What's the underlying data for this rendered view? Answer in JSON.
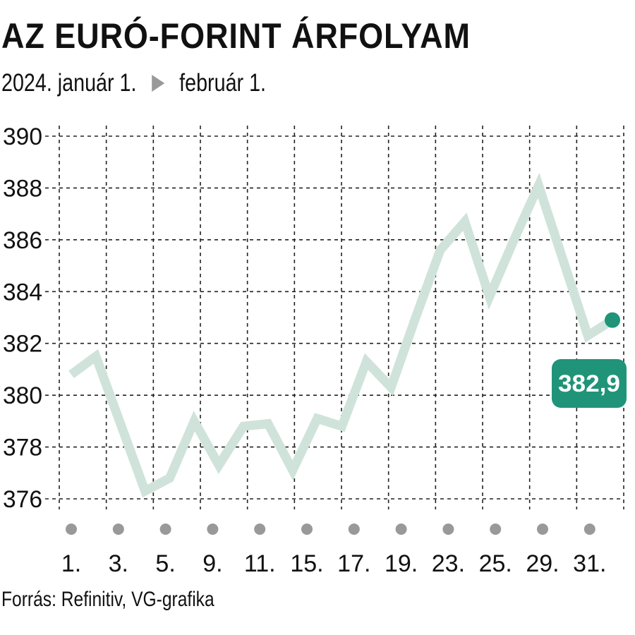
{
  "header": {
    "title": "AZ EURÓ-FORINT ÁRFOLYAM",
    "subtitle_start": "2024. január 1.",
    "subtitle_end": "február 1."
  },
  "footer": {
    "source": "Forrás: Refinitiv, VG-grafika"
  },
  "colors": {
    "line": "#cfe3db",
    "accent": "#1f9478",
    "grid": "#222222",
    "marker": "#999999"
  },
  "chart_data": {
    "type": "line",
    "title": "AZ EURÓ-FORINT ÁRFOLYAM",
    "xlabel": "",
    "ylabel": "",
    "ylim": [
      376,
      390
    ],
    "yticks": [
      376,
      378,
      380,
      382,
      384,
      386,
      388,
      390
    ],
    "xticks": [
      "1.",
      "3.",
      "5.",
      "9.",
      "11.",
      "15.",
      "17.",
      "19.",
      "23.",
      "25.",
      "29.",
      "31."
    ],
    "grid": true,
    "series": [
      {
        "values": [
          380.8,
          381.5,
          378.9,
          376.3,
          376.8,
          379.0,
          377.3,
          378.8,
          378.9,
          377.1,
          379.1,
          378.8,
          381.3,
          380.3,
          383.0,
          385.6,
          386.7,
          383.8,
          386.0,
          388.1,
          385.2,
          382.3,
          382.9
        ]
      }
    ],
    "last_value_label": "382,9"
  }
}
